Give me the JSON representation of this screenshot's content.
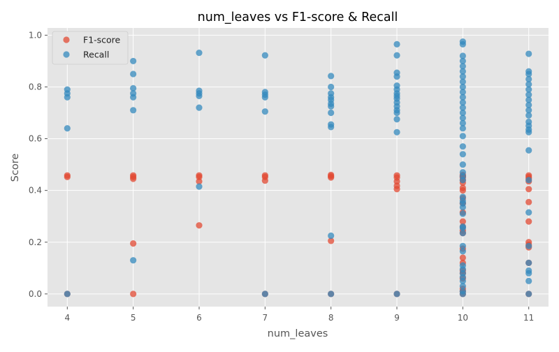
{
  "chart_data": {
    "type": "scatter",
    "title": "num_leaves vs F1-score & Recall",
    "xlabel": "num_leaves",
    "ylabel": "Score",
    "xlim": [
      3.7,
      11.3
    ],
    "ylim": [
      -0.049,
      1.028
    ],
    "xticks": [
      "4",
      "5",
      "6",
      "7",
      "8",
      "9",
      "10",
      "11"
    ],
    "yticks": [
      "0.0",
      "0.2",
      "0.4",
      "0.6",
      "0.8",
      "1.0"
    ],
    "grid": true,
    "legend_position": "top-left",
    "series": [
      {
        "name": "F1-score",
        "color": "#E24A33",
        "points": [
          [
            4,
            0.0
          ],
          [
            4,
            0.452
          ],
          [
            4,
            0.458
          ],
          [
            5,
            0.0
          ],
          [
            5,
            0.195
          ],
          [
            5,
            0.445
          ],
          [
            5,
            0.452
          ],
          [
            5,
            0.458
          ],
          [
            6,
            0.265
          ],
          [
            6,
            0.435
          ],
          [
            6,
            0.452
          ],
          [
            6,
            0.458
          ],
          [
            7,
            0.0
          ],
          [
            7,
            0.438
          ],
          [
            7,
            0.452
          ],
          [
            7,
            0.458
          ],
          [
            8,
            0.0
          ],
          [
            8,
            0.205
          ],
          [
            8,
            0.45
          ],
          [
            8,
            0.455
          ],
          [
            8,
            0.46
          ],
          [
            9,
            0.0
          ],
          [
            9,
            0.405
          ],
          [
            9,
            0.418
          ],
          [
            9,
            0.435
          ],
          [
            9,
            0.45
          ],
          [
            9,
            0.458
          ],
          [
            10,
            0.0
          ],
          [
            10,
            0.01
          ],
          [
            10,
            0.02
          ],
          [
            10,
            0.06
          ],
          [
            10,
            0.08
          ],
          [
            10,
            0.09
          ],
          [
            10,
            0.12
          ],
          [
            10,
            0.14
          ],
          [
            10,
            0.175
          ],
          [
            10,
            0.235
          ],
          [
            10,
            0.245
          ],
          [
            10,
            0.26
          ],
          [
            10,
            0.28
          ],
          [
            10,
            0.315
          ],
          [
            10,
            0.35
          ],
          [
            10,
            0.37
          ],
          [
            10,
            0.4
          ],
          [
            10,
            0.41
          ],
          [
            10,
            0.43
          ],
          [
            10,
            0.44
          ],
          [
            10,
            0.45
          ],
          [
            10,
            0.455
          ],
          [
            10,
            0.46
          ],
          [
            11,
            0.0
          ],
          [
            11,
            0.12
          ],
          [
            11,
            0.18
          ],
          [
            11,
            0.19
          ],
          [
            11,
            0.2
          ],
          [
            11,
            0.28
          ],
          [
            11,
            0.355
          ],
          [
            11,
            0.405
          ],
          [
            11,
            0.435
          ],
          [
            11,
            0.445
          ],
          [
            11,
            0.452
          ],
          [
            11,
            0.458
          ]
        ]
      },
      {
        "name": "Recall",
        "color": "#348ABD",
        "points": [
          [
            4,
            0.0
          ],
          [
            4,
            0.64
          ],
          [
            4,
            0.76
          ],
          [
            4,
            0.775
          ],
          [
            4,
            0.79
          ],
          [
            5,
            0.13
          ],
          [
            5,
            0.71
          ],
          [
            5,
            0.76
          ],
          [
            5,
            0.775
          ],
          [
            5,
            0.795
          ],
          [
            5,
            0.85
          ],
          [
            5,
            0.9
          ],
          [
            6,
            0.415
          ],
          [
            6,
            0.72
          ],
          [
            6,
            0.765
          ],
          [
            6,
            0.775
          ],
          [
            6,
            0.785
          ],
          [
            6,
            0.932
          ],
          [
            7,
            0.0
          ],
          [
            7,
            0.705
          ],
          [
            7,
            0.76
          ],
          [
            7,
            0.77
          ],
          [
            7,
            0.78
          ],
          [
            7,
            0.922
          ],
          [
            8,
            0.0
          ],
          [
            8,
            0.225
          ],
          [
            8,
            0.645
          ],
          [
            8,
            0.655
          ],
          [
            8,
            0.7
          ],
          [
            8,
            0.725
          ],
          [
            8,
            0.735
          ],
          [
            8,
            0.75
          ],
          [
            8,
            0.76
          ],
          [
            8,
            0.775
          ],
          [
            8,
            0.8
          ],
          [
            8,
            0.842
          ],
          [
            9,
            0.0
          ],
          [
            9,
            0.625
          ],
          [
            9,
            0.675
          ],
          [
            9,
            0.7
          ],
          [
            9,
            0.71
          ],
          [
            9,
            0.725
          ],
          [
            9,
            0.74
          ],
          [
            9,
            0.755
          ],
          [
            9,
            0.765
          ],
          [
            9,
            0.775
          ],
          [
            9,
            0.79
          ],
          [
            9,
            0.805
          ],
          [
            9,
            0.84
          ],
          [
            9,
            0.855
          ],
          [
            9,
            0.922
          ],
          [
            9,
            0.965
          ],
          [
            10,
            0.0
          ],
          [
            10,
            0.01
          ],
          [
            10,
            0.03
          ],
          [
            10,
            0.05
          ],
          [
            10,
            0.065
          ],
          [
            10,
            0.08
          ],
          [
            10,
            0.095
          ],
          [
            10,
            0.11
          ],
          [
            10,
            0.165
          ],
          [
            10,
            0.185
          ],
          [
            10,
            0.235
          ],
          [
            10,
            0.255
          ],
          [
            10,
            0.26
          ],
          [
            10,
            0.31
          ],
          [
            10,
            0.335
          ],
          [
            10,
            0.35
          ],
          [
            10,
            0.36
          ],
          [
            10,
            0.375
          ],
          [
            10,
            0.44
          ],
          [
            10,
            0.455
          ],
          [
            10,
            0.47
          ],
          [
            10,
            0.5
          ],
          [
            10,
            0.54
          ],
          [
            10,
            0.57
          ],
          [
            10,
            0.61
          ],
          [
            10,
            0.64
          ],
          [
            10,
            0.66
          ],
          [
            10,
            0.68
          ],
          [
            10,
            0.7
          ],
          [
            10,
            0.72
          ],
          [
            10,
            0.74
          ],
          [
            10,
            0.76
          ],
          [
            10,
            0.78
          ],
          [
            10,
            0.8
          ],
          [
            10,
            0.82
          ],
          [
            10,
            0.84
          ],
          [
            10,
            0.86
          ],
          [
            10,
            0.88
          ],
          [
            10,
            0.9
          ],
          [
            10,
            0.92
          ],
          [
            10,
            0.965
          ],
          [
            10,
            0.975
          ],
          [
            11,
            0.0
          ],
          [
            11,
            0.05
          ],
          [
            11,
            0.08
          ],
          [
            11,
            0.09
          ],
          [
            11,
            0.12
          ],
          [
            11,
            0.185
          ],
          [
            11,
            0.315
          ],
          [
            11,
            0.44
          ],
          [
            11,
            0.555
          ],
          [
            11,
            0.625
          ],
          [
            11,
            0.635
          ],
          [
            11,
            0.65
          ],
          [
            11,
            0.665
          ],
          [
            11,
            0.69
          ],
          [
            11,
            0.71
          ],
          [
            11,
            0.73
          ],
          [
            11,
            0.75
          ],
          [
            11,
            0.77
          ],
          [
            11,
            0.79
          ],
          [
            11,
            0.81
          ],
          [
            11,
            0.83
          ],
          [
            11,
            0.85
          ],
          [
            11,
            0.86
          ],
          [
            11,
            0.928
          ]
        ]
      }
    ]
  }
}
